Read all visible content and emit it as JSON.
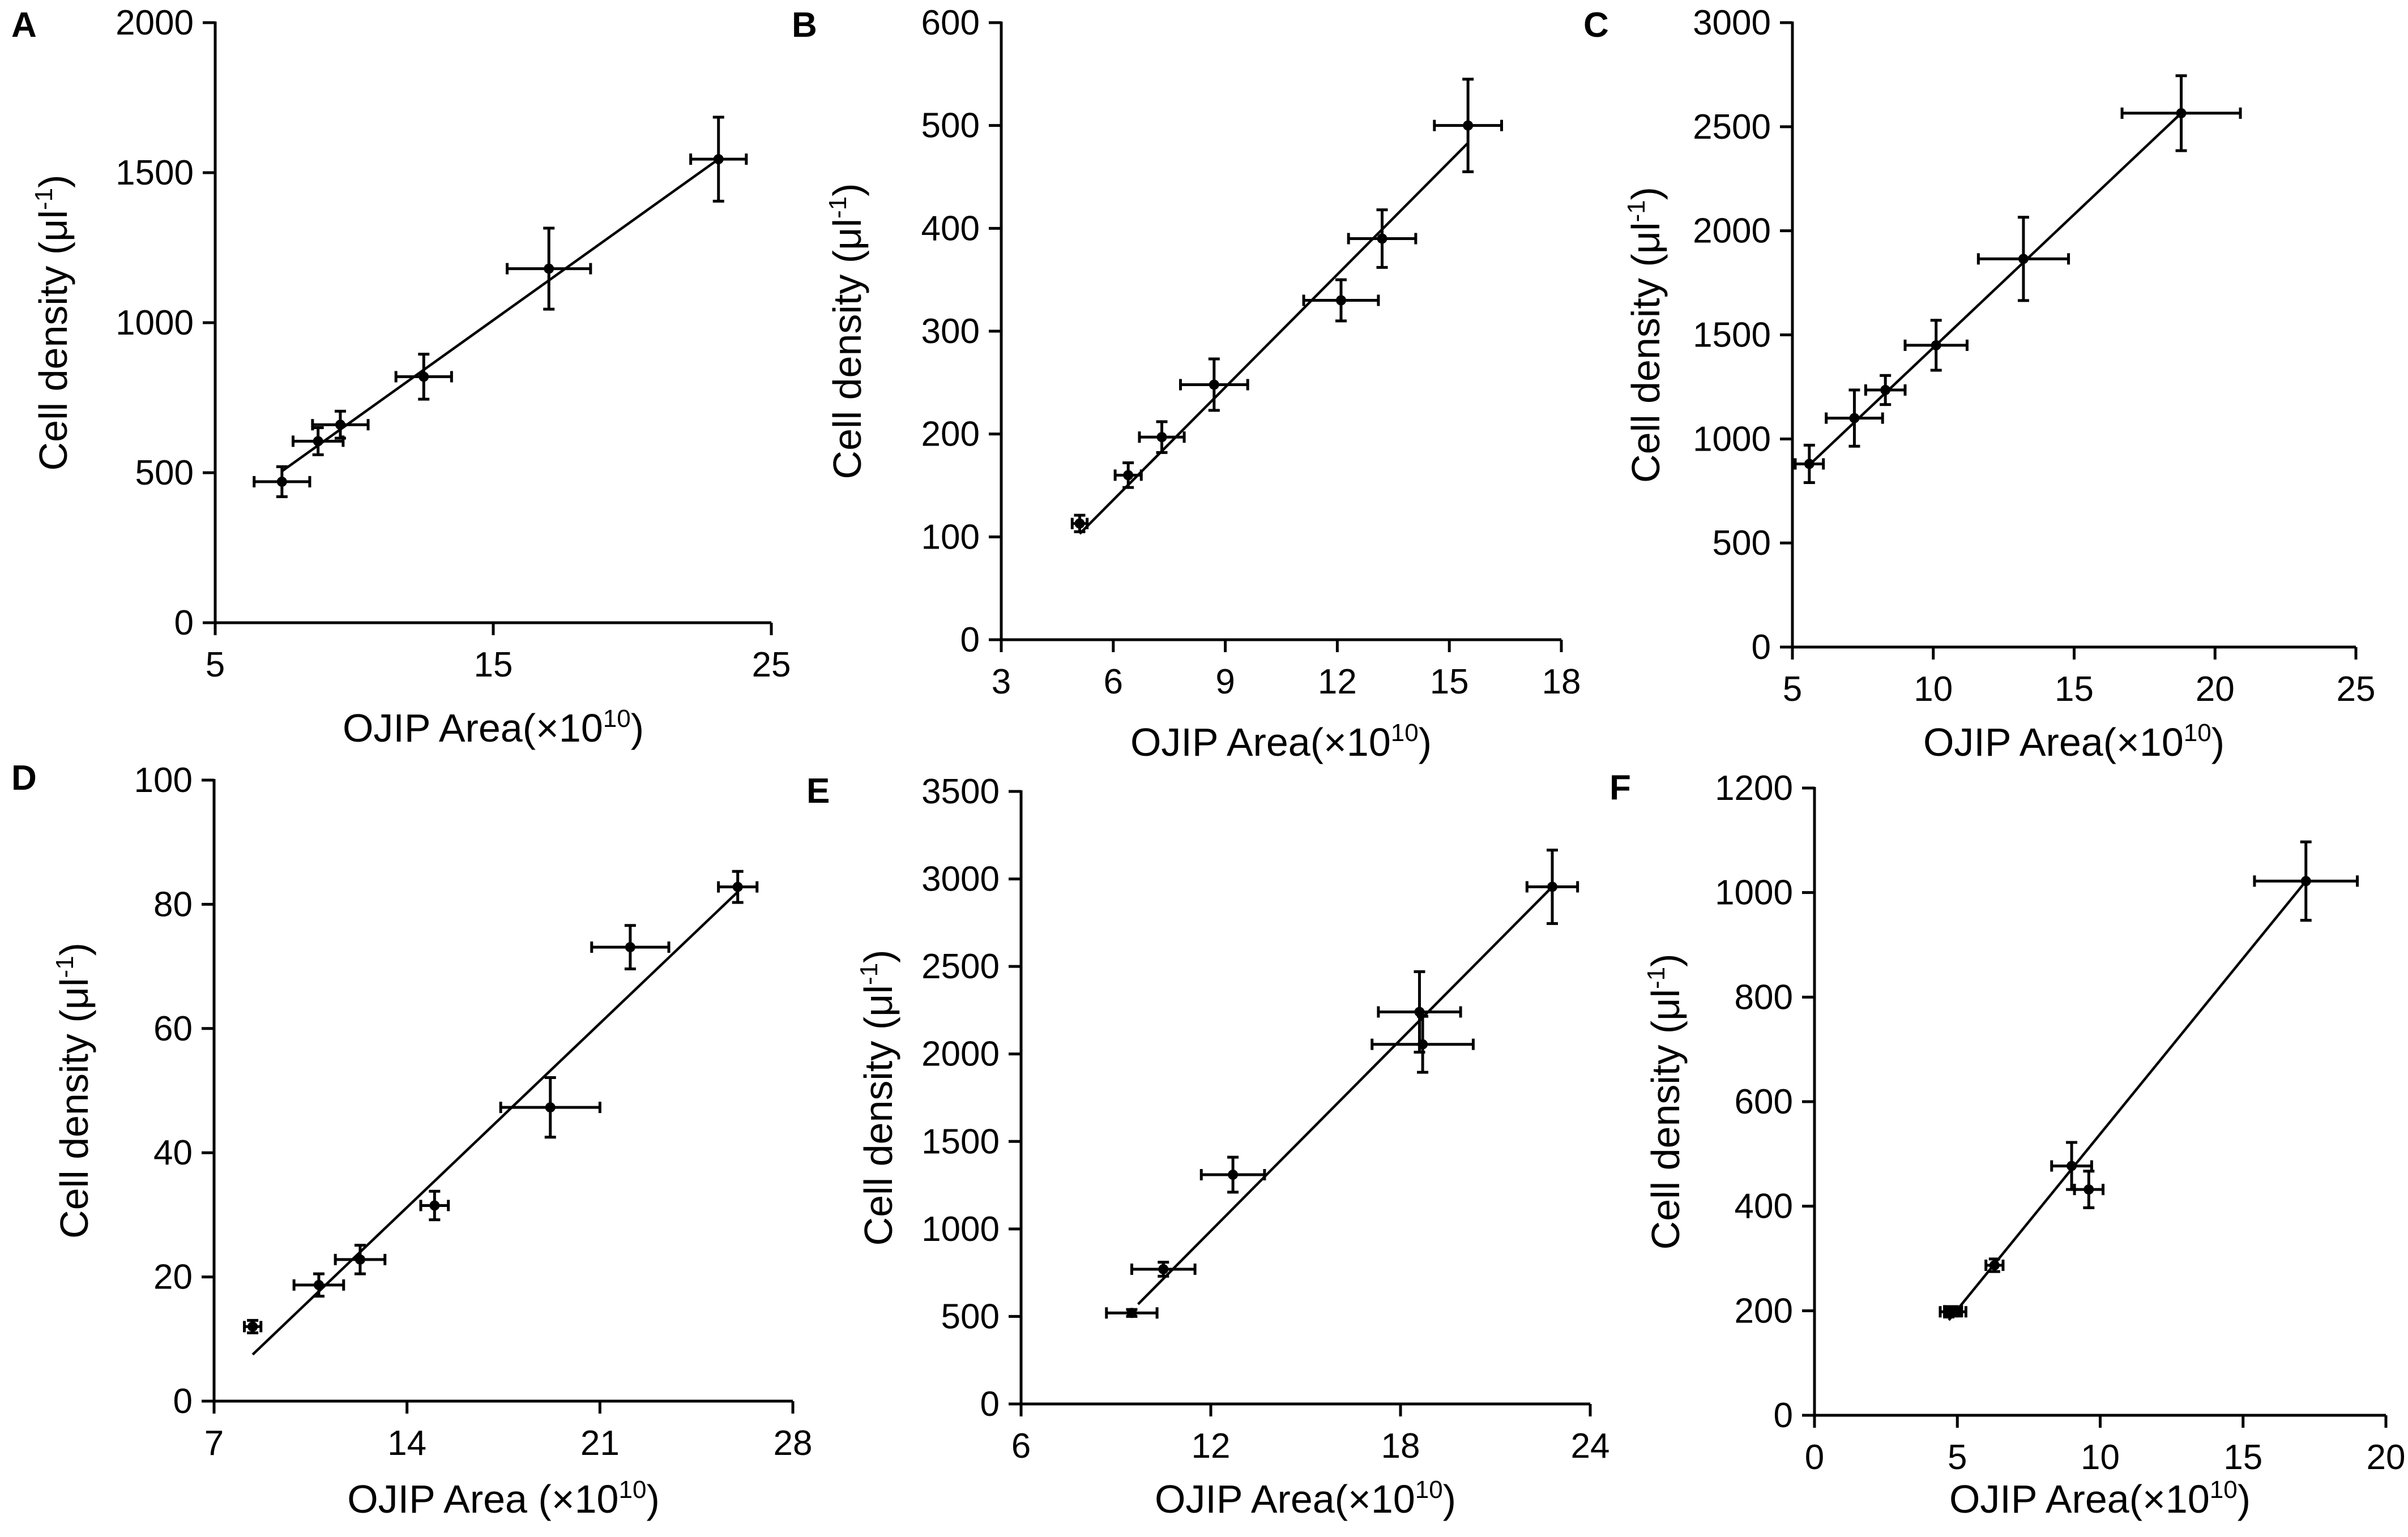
{
  "chart_data": [
    {
      "panel": "A",
      "type": "scatter",
      "xlabel": "OJIP Area(×10",
      "xlabel_sup": "10",
      "xlabel_suffix": ")",
      "ylabel": "Cell density (μl",
      "ylabel_sup": "-1",
      "ylabel_suffix": ")",
      "xlim": [
        5,
        25
      ],
      "xticks": [
        5,
        15,
        25
      ],
      "xtick_labels": [
        "5",
        "15",
        "25"
      ],
      "ylim": [
        0,
        2000
      ],
      "yticks": [
        0,
        500,
        1000,
        1500,
        2000
      ],
      "ytick_labels": [
        "0",
        "500",
        "1000",
        "1500",
        "2000"
      ],
      "points": [
        {
          "x": 7.4,
          "y": 470,
          "xerr": 1.0,
          "yerr": 50
        },
        {
          "x": 8.7,
          "y": 605,
          "xerr": 0.9,
          "yerr": 45
        },
        {
          "x": 9.5,
          "y": 660,
          "xerr": 1.0,
          "yerr": 45
        },
        {
          "x": 12.5,
          "y": 820,
          "xerr": 1.0,
          "yerr": 75
        },
        {
          "x": 17.0,
          "y": 1180,
          "xerr": 1.5,
          "yerr": 135
        },
        {
          "x": 23.1,
          "y": 1545,
          "xerr": 1.0,
          "yerr": 140
        }
      ],
      "fit": {
        "x1": 7.4,
        "y1": 505,
        "x2": 23.1,
        "y2": 1545
      }
    },
    {
      "panel": "B",
      "type": "scatter",
      "xlabel": "OJIP Area(×10",
      "xlabel_sup": "10",
      "xlabel_suffix": ")",
      "ylabel": "Cell density (μl",
      "ylabel_sup": "-1",
      "ylabel_suffix": ")",
      "xlim": [
        3,
        18
      ],
      "xticks": [
        3,
        6,
        9,
        12,
        15,
        18
      ],
      "xtick_labels": [
        "3",
        "6",
        "9",
        "12",
        "15",
        "18"
      ],
      "ylim": [
        0,
        600
      ],
      "yticks": [
        0,
        100,
        200,
        300,
        400,
        500,
        600
      ],
      "ytick_labels": [
        "0",
        "100",
        "200",
        "300",
        "400",
        "500",
        "600"
      ],
      "points": [
        {
          "x": 5.1,
          "y": 113,
          "xerr": 0.2,
          "yerr": 8
        },
        {
          "x": 6.4,
          "y": 160,
          "xerr": 0.35,
          "yerr": 12
        },
        {
          "x": 7.3,
          "y": 197,
          "xerr": 0.6,
          "yerr": 15
        },
        {
          "x": 8.7,
          "y": 248,
          "xerr": 0.9,
          "yerr": 25
        },
        {
          "x": 12.1,
          "y": 330,
          "xerr": 1.0,
          "yerr": 20
        },
        {
          "x": 13.2,
          "y": 390,
          "xerr": 0.9,
          "yerr": 28
        },
        {
          "x": 15.5,
          "y": 500,
          "xerr": 0.9,
          "yerr": 45
        }
      ],
      "fit": {
        "x1": 5.1,
        "y1": 103,
        "x2": 15.5,
        "y2": 483
      }
    },
    {
      "panel": "C",
      "type": "scatter",
      "xlabel": "OJIP Area(×10",
      "xlabel_sup": "10",
      "xlabel_suffix": ")",
      "ylabel": "Cell density (μl",
      "ylabel_sup": "-1",
      "ylabel_suffix": ")",
      "xlim": [
        5,
        25
      ],
      "xticks": [
        5,
        10,
        15,
        20,
        25
      ],
      "xtick_labels": [
        "5",
        "10",
        "15",
        "20",
        "25"
      ],
      "ylim": [
        0,
        3000
      ],
      "yticks": [
        0,
        500,
        1000,
        1500,
        2000,
        2500,
        3000
      ],
      "ytick_labels": [
        "0",
        "500",
        "1000",
        "1500",
        "2000",
        "2500",
        "3000"
      ],
      "points": [
        {
          "x": 5.6,
          "y": 880,
          "xerr": 0.5,
          "yerr": 90
        },
        {
          "x": 7.2,
          "y": 1100,
          "xerr": 1.0,
          "yerr": 135
        },
        {
          "x": 8.3,
          "y": 1235,
          "xerr": 0.7,
          "yerr": 70
        },
        {
          "x": 10.1,
          "y": 1450,
          "xerr": 1.1,
          "yerr": 120
        },
        {
          "x": 13.2,
          "y": 1865,
          "xerr": 1.6,
          "yerr": 200
        },
        {
          "x": 18.8,
          "y": 2565,
          "xerr": 2.1,
          "yerr": 180
        }
      ],
      "fit": {
        "x1": 5.6,
        "y1": 875,
        "x2": 18.8,
        "y2": 2565
      }
    },
    {
      "panel": "D",
      "type": "scatter",
      "xlabel": "OJIP Area (×10",
      "xlabel_sup": "10",
      "xlabel_suffix": ")",
      "ylabel": "Cell density (μl",
      "ylabel_sup": "-1",
      "ylabel_suffix": ")",
      "xlim": [
        7,
        28
      ],
      "xticks": [
        7,
        14,
        21,
        28
      ],
      "xtick_labels": [
        "7",
        "14",
        "21",
        "28"
      ],
      "ylim": [
        0,
        100
      ],
      "yticks": [
        0,
        20,
        40,
        60,
        80,
        100
      ],
      "ytick_labels": [
        "0",
        "20",
        "40",
        "60",
        "80",
        "100"
      ],
      "points": [
        {
          "x": 8.4,
          "y": 12,
          "xerr": 0.3,
          "yerr": 1
        },
        {
          "x": 10.8,
          "y": 18.7,
          "xerr": 0.9,
          "yerr": 1.8
        },
        {
          "x": 12.3,
          "y": 22.8,
          "xerr": 0.9,
          "yerr": 2.3
        },
        {
          "x": 15.0,
          "y": 31.5,
          "xerr": 0.5,
          "yerr": 2.3
        },
        {
          "x": 19.2,
          "y": 47.3,
          "xerr": 1.8,
          "yerr": 4.8
        },
        {
          "x": 22.1,
          "y": 73.1,
          "xerr": 1.4,
          "yerr": 3.5
        },
        {
          "x": 26.0,
          "y": 82.8,
          "xerr": 0.7,
          "yerr": 2.5
        }
      ],
      "fit": {
        "x1": 8.4,
        "y1": 7.5,
        "x2": 26.0,
        "y2": 82.0
      }
    },
    {
      "panel": "E",
      "type": "scatter",
      "xlabel": "OJIP Area(×10",
      "xlabel_sup": "10",
      "xlabel_suffix": ")",
      "ylabel": "Cell density (μl",
      "ylabel_sup": "-1",
      "ylabel_suffix": ")",
      "xlim": [
        6,
        24
      ],
      "xticks": [
        6,
        12,
        18,
        24
      ],
      "xtick_labels": [
        "6",
        "12",
        "18",
        "24"
      ],
      "ylim": [
        0,
        3500
      ],
      "yticks": [
        0,
        500,
        1000,
        1500,
        2000,
        2500,
        3000,
        3500
      ],
      "ytick_labels": [
        "0",
        "500",
        "1000",
        "1500",
        "2000",
        "2500",
        "3000",
        "3500"
      ],
      "points": [
        {
          "x": 9.5,
          "y": 520,
          "xerr": 0.8,
          "yerr": 20
        },
        {
          "x": 10.5,
          "y": 770,
          "xerr": 1.0,
          "yerr": 40
        },
        {
          "x": 12.7,
          "y": 1310,
          "xerr": 1.0,
          "yerr": 100
        },
        {
          "x": 18.6,
          "y": 2240,
          "xerr": 1.3,
          "yerr": 230
        },
        {
          "x": 18.7,
          "y": 2055,
          "xerr": 1.6,
          "yerr": 160
        },
        {
          "x": 22.8,
          "y": 2955,
          "xerr": 0.8,
          "yerr": 210
        }
      ],
      "fit": {
        "x1": 9.7,
        "y1": 570,
        "x2": 22.8,
        "y2": 2955
      }
    },
    {
      "panel": "F",
      "type": "scatter",
      "xlabel": "OJIP Area(×10",
      "xlabel_sup": "10",
      "xlabel_suffix": ")",
      "ylabel": "Cell density (μl",
      "ylabel_sup": "-1",
      "ylabel_suffix": ")",
      "xlim": [
        0,
        20
      ],
      "xticks": [
        0,
        5,
        10,
        15,
        20
      ],
      "xtick_labels": [
        "0",
        "5",
        "10",
        "15",
        "20"
      ],
      "ylim": [
        0,
        1200
      ],
      "yticks": [
        0,
        200,
        400,
        600,
        800,
        1000,
        1200
      ],
      "ytick_labels": [
        "0",
        "200",
        "400",
        "600",
        "800",
        "1000",
        "1200"
      ],
      "points": [
        {
          "x": 4.7,
          "y": 198,
          "xerr": 0.3,
          "yerr": 10
        },
        {
          "x": 4.85,
          "y": 200,
          "xerr": 0.3,
          "yerr": 8
        },
        {
          "x": 5.0,
          "y": 198,
          "xerr": 0.3,
          "yerr": 8
        },
        {
          "x": 6.3,
          "y": 287,
          "xerr": 0.3,
          "yerr": 12
        },
        {
          "x": 9.0,
          "y": 477,
          "xerr": 0.7,
          "yerr": 45
        },
        {
          "x": 9.6,
          "y": 432,
          "xerr": 0.5,
          "yerr": 35
        },
        {
          "x": 17.2,
          "y": 1022,
          "xerr": 1.8,
          "yerr": 75
        }
      ],
      "fit": {
        "x1": 4.7,
        "y1": 182,
        "x2": 17.2,
        "y2": 1022
      }
    }
  ]
}
